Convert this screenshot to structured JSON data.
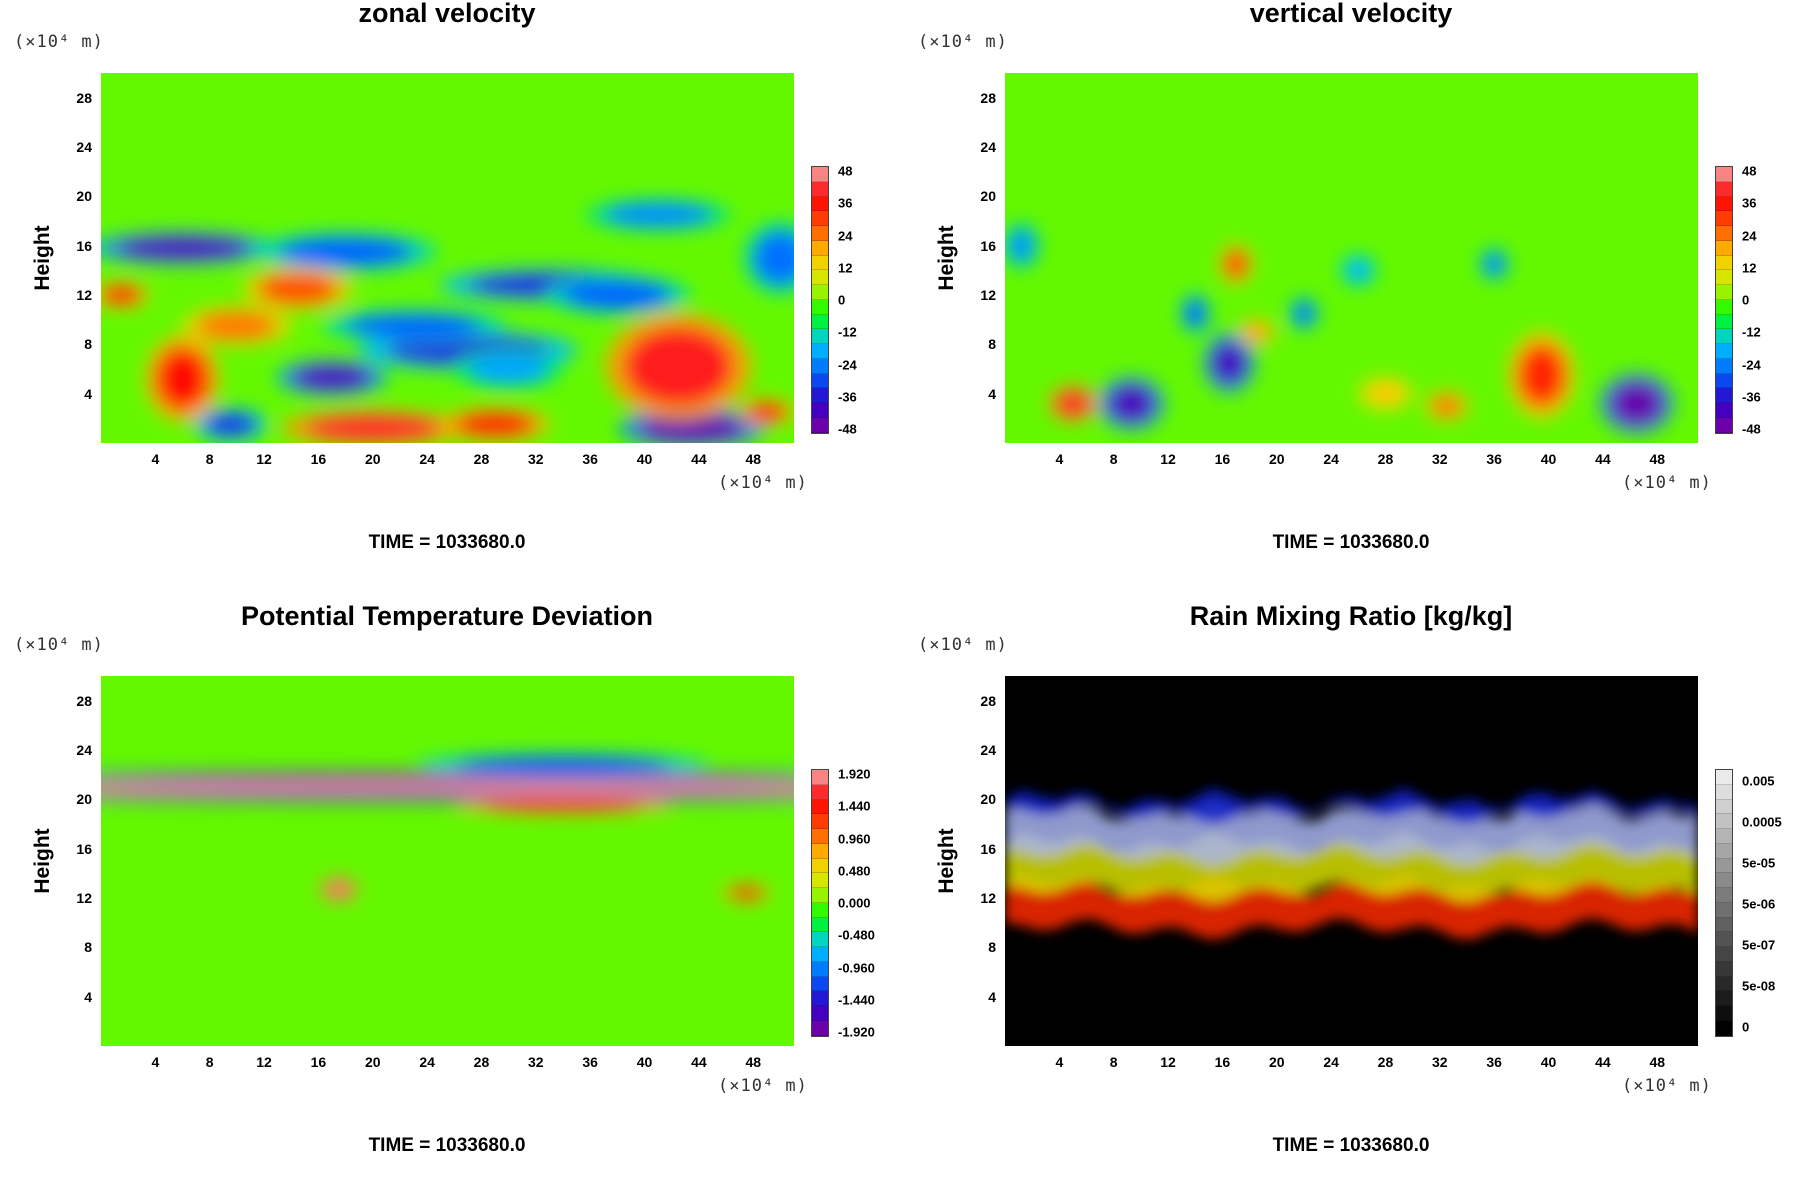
{
  "chart_data": [
    {
      "type": "heatmap",
      "title": "zonal velocity",
      "ylabel": "Height",
      "unit_label_y": "(×10⁴ m)",
      "unit_label_x": "(×10⁴ m)",
      "xticks": [
        "4",
        "8",
        "12",
        "16",
        "20",
        "24",
        "28",
        "32",
        "36",
        "40",
        "44",
        "48"
      ],
      "xlim": [
        0,
        51
      ],
      "yticks": [
        "4",
        "8",
        "12",
        "16",
        "20",
        "24",
        "28"
      ],
      "ylim": [
        0,
        30
      ],
      "colorbar_ticks": [
        "48",
        "36",
        "24",
        "12",
        "0",
        "-12",
        "-24",
        "-36",
        "-48"
      ],
      "colorbar_range": [
        -54,
        54
      ],
      "colormap": "rainbow",
      "background_value": 0,
      "grid": false,
      "time_label": "TIME = 1033680.0",
      "features": [
        {
          "x": 6,
          "y": 15.8,
          "rx": 5,
          "ry": 1.0,
          "value": -46
        },
        {
          "x": 18,
          "y": 15.5,
          "rx": 5,
          "ry": 1.2,
          "value": -30
        },
        {
          "x": 41,
          "y": 18.5,
          "rx": 4,
          "ry": 1.0,
          "value": -25
        },
        {
          "x": 33,
          "y": 12.8,
          "rx": 6,
          "ry": 1.0,
          "value": -38
        },
        {
          "x": 38,
          "y": 12,
          "rx": 4,
          "ry": 1.2,
          "value": -30
        },
        {
          "x": 27,
          "y": 7.5,
          "rx": 6,
          "ry": 1.2,
          "value": -38
        },
        {
          "x": 17,
          "y": 5.3,
          "rx": 3,
          "ry": 1.1,
          "value": -46
        },
        {
          "x": 23,
          "y": 9.5,
          "rx": 5,
          "ry": 1.0,
          "value": -30
        },
        {
          "x": 30,
          "y": 6,
          "rx": 3,
          "ry": 1.2,
          "value": -22
        },
        {
          "x": 43.5,
          "y": 1.2,
          "rx": 4,
          "ry": 1.2,
          "value": -50
        },
        {
          "x": 9.5,
          "y": 1.5,
          "rx": 2,
          "ry": 1.0,
          "value": -36
        },
        {
          "x": 50,
          "y": 15,
          "rx": 2,
          "ry": 2.2,
          "value": -28
        },
        {
          "x": 42.5,
          "y": 6.2,
          "rx": 4,
          "ry": 3.2,
          "value": 44
        },
        {
          "x": 6,
          "y": 5.2,
          "rx": 2,
          "ry": 2.6,
          "value": 40
        },
        {
          "x": 14.5,
          "y": 12.5,
          "rx": 3,
          "ry": 1.3,
          "value": 30
        },
        {
          "x": 1.5,
          "y": 12,
          "rx": 1.5,
          "ry": 0.8,
          "value": 38
        },
        {
          "x": 20,
          "y": 1.2,
          "rx": 5,
          "ry": 1.1,
          "value": 45
        },
        {
          "x": 29,
          "y": 1.5,
          "rx": 3,
          "ry": 1.0,
          "value": 40
        },
        {
          "x": 49,
          "y": 2.5,
          "rx": 1.5,
          "ry": 0.8,
          "value": 38
        },
        {
          "x": 10,
          "y": 9.5,
          "rx": 3,
          "ry": 1.2,
          "value": 26
        }
      ]
    },
    {
      "type": "heatmap",
      "title": "vertical velocity",
      "ylabel": "Height",
      "unit_label_y": "(×10⁴ m)",
      "unit_label_x": "(×10⁴ m)",
      "xticks": [
        "4",
        "8",
        "12",
        "16",
        "20",
        "24",
        "28",
        "32",
        "36",
        "40",
        "44",
        "48"
      ],
      "xlim": [
        0,
        51
      ],
      "yticks": [
        "4",
        "8",
        "12",
        "16",
        "20",
        "24",
        "28"
      ],
      "ylim": [
        0,
        30
      ],
      "colorbar_ticks": [
        "48",
        "36",
        "24",
        "12",
        "0",
        "-12",
        "-24",
        "-36",
        "-48"
      ],
      "colorbar_range": [
        -54,
        54
      ],
      "colormap": "rainbow",
      "background_value": 0,
      "grid": false,
      "time_label": "TIME = 1033680.0",
      "features": [
        {
          "x": 5,
          "y": 3.2,
          "rx": 1.3,
          "ry": 1.1,
          "value": 45
        },
        {
          "x": 9.3,
          "y": 3.2,
          "rx": 1.8,
          "ry": 1.6,
          "value": -46
        },
        {
          "x": 16.5,
          "y": 6.5,
          "rx": 1.4,
          "ry": 1.8,
          "value": -45
        },
        {
          "x": 39.5,
          "y": 5.5,
          "rx": 1.8,
          "ry": 2.6,
          "value": 36
        },
        {
          "x": 46.5,
          "y": 3.2,
          "rx": 2,
          "ry": 1.8,
          "value": -50
        },
        {
          "x": 17,
          "y": 14.5,
          "rx": 0.9,
          "ry": 1.2,
          "value": 32
        },
        {
          "x": 14,
          "y": 10.5,
          "rx": 0.8,
          "ry": 1.2,
          "value": -30
        },
        {
          "x": 22,
          "y": 10.5,
          "rx": 0.8,
          "ry": 1.0,
          "value": -28
        },
        {
          "x": 36,
          "y": 14.5,
          "rx": 0.8,
          "ry": 1.0,
          "value": -26
        },
        {
          "x": 26,
          "y": 14,
          "rx": 1.0,
          "ry": 1.0,
          "value": -20
        },
        {
          "x": 32.5,
          "y": 3,
          "rx": 1.2,
          "ry": 0.9,
          "value": 26
        },
        {
          "x": 1.2,
          "y": 16,
          "rx": 1.0,
          "ry": 1.4,
          "value": -24
        },
        {
          "x": 18.5,
          "y": 9,
          "rx": 1.0,
          "ry": 0.8,
          "value": 22
        },
        {
          "x": 28,
          "y": 4,
          "rx": 1.5,
          "ry": 1.0,
          "value": 18
        }
      ]
    },
    {
      "type": "heatmap",
      "title": "Potential Temperature Deviation",
      "ylabel": "Height",
      "unit_label_y": "(×10⁴ m)",
      "unit_label_x": "(×10⁴ m)",
      "xticks": [
        "4",
        "8",
        "12",
        "16",
        "20",
        "24",
        "28",
        "32",
        "36",
        "40",
        "44",
        "48"
      ],
      "xlim": [
        0,
        51
      ],
      "yticks": [
        "4",
        "8",
        "12",
        "16",
        "20",
        "24",
        "28"
      ],
      "ylim": [
        0,
        30
      ],
      "colorbar_ticks": [
        "1.920",
        "1.440",
        "0.960",
        "0.480",
        "0.000",
        "-0.480",
        "-0.960",
        "-1.440",
        "-1.920"
      ],
      "colorbar_range": [
        -2.16,
        2.16
      ],
      "colormap": "rainbow",
      "background_value": 0,
      "grid": false,
      "time_label": "TIME = 1033680.0",
      "features": [
        {
          "x": 25.5,
          "y": 21.8,
          "rx": 26,
          "ry": 0.35,
          "value": -2.0
        },
        {
          "x": 25.5,
          "y": 20.9,
          "rx": 26,
          "ry": 0.45,
          "value": 2.1
        },
        {
          "x": 25.5,
          "y": 20.2,
          "rx": 26,
          "ry": 0.3,
          "value": -2.0
        },
        {
          "x": 34,
          "y": 22.8,
          "rx": 8,
          "ry": 0.7,
          "value": -1.3
        },
        {
          "x": 34,
          "y": 19.5,
          "rx": 6,
          "ry": 0.5,
          "value": 1.6
        },
        {
          "x": 17.5,
          "y": 12.7,
          "rx": 1.0,
          "ry": 0.7,
          "value": 2.0
        },
        {
          "x": 47.5,
          "y": 12.4,
          "rx": 1.3,
          "ry": 0.5,
          "value": 1.6
        }
      ]
    },
    {
      "type": "heatmap",
      "title": "Rain Mixing Ratio [kg/kg]",
      "ylabel": "Height",
      "unit_label_y": "(×10⁴ m)",
      "unit_label_x": "(×10⁴ m)",
      "xticks": [
        "4",
        "8",
        "12",
        "16",
        "20",
        "24",
        "28",
        "32",
        "36",
        "40",
        "44",
        "48"
      ],
      "xlim": [
        0,
        51
      ],
      "yticks": [
        "4",
        "8",
        "12",
        "16",
        "20",
        "24",
        "28"
      ],
      "ylim": [
        0,
        30
      ],
      "colorbar_ticks": [
        "0.005",
        "0.0005",
        "5e-05",
        "5e-06",
        "5e-07",
        "5e-08",
        "0"
      ],
      "colormap": "grayscale-log",
      "grid": false,
      "time_label": "TIME = 1033680.0",
      "layers": [
        {
          "name_color": "#ff2a00",
          "y_top": 13.0,
          "y_bottom": 9.5
        },
        {
          "name_color": "#d8e000",
          "y_top": 16.5,
          "y_bottom": 12.5
        },
        {
          "name_color": "#a8b4f0",
          "y_top": 19.0,
          "y_bottom": 15.5
        },
        {
          "name_color": "#1020c8",
          "y_top": 20.0,
          "y_bottom": 18.8
        }
      ]
    }
  ]
}
